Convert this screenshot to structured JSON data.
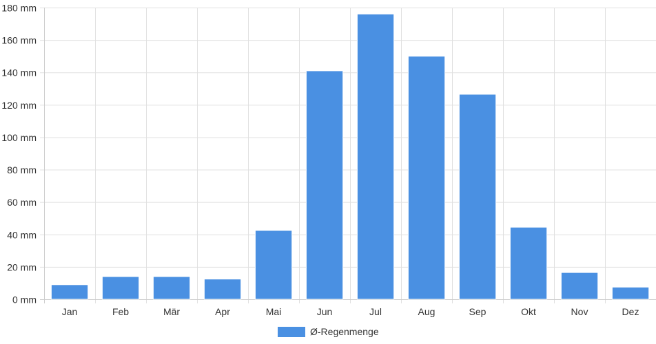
{
  "chart_data": {
    "type": "bar",
    "title": "",
    "xlabel": "",
    "ylabel": "",
    "categories": [
      "Jan",
      "Feb",
      "Mär",
      "Apr",
      "Mai",
      "Jun",
      "Jul",
      "Aug",
      "Sep",
      "Okt",
      "Nov",
      "Dez"
    ],
    "series": [
      {
        "name": "Ø-Regenmenge",
        "color": "#4a90e2",
        "values": [
          9,
          14,
          14,
          12.5,
          42.5,
          141,
          176,
          150,
          126.5,
          44.5,
          16.5,
          7.5
        ]
      }
    ],
    "ylim": [
      0,
      180
    ],
    "yticks": [
      0,
      20,
      40,
      60,
      80,
      100,
      120,
      140,
      160,
      180
    ],
    "ytick_labels": [
      "0 mm",
      "20 mm",
      "40 mm",
      "60 mm",
      "80 mm",
      "100 mm",
      "120 mm",
      "140 mm",
      "160 mm",
      "180 mm"
    ],
    "grid": true,
    "legend": {
      "position": "bottom-center",
      "entries": [
        "Ø-Regenmenge"
      ]
    }
  }
}
